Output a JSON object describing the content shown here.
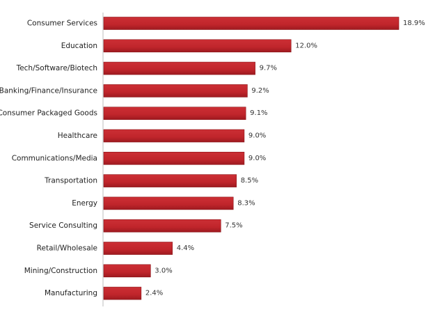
{
  "chart_data": {
    "type": "bar",
    "orientation": "horizontal",
    "categories": [
      "Consumer Services",
      "Education",
      "Tech/Software/Biotech",
      "Banking/Finance/Insurance",
      "Consumer Packaged Goods",
      "Healthcare",
      "Communications/Media",
      "Transportation",
      "Energy",
      "Service Consulting",
      "Retail/Wholesale",
      "Mining/Construction",
      "Manufacturing"
    ],
    "values": [
      18.9,
      12.0,
      9.7,
      9.2,
      9.1,
      9.0,
      9.0,
      8.5,
      8.3,
      7.5,
      4.4,
      3.0,
      2.4
    ],
    "value_labels": [
      "18.9%",
      "12.0%",
      "9.7%",
      "9.2%",
      "9.1%",
      "9.0%",
      "9.0%",
      "8.5%",
      "8.3%",
      "7.5%",
      "4.4%",
      "3.0%",
      "2.4%"
    ],
    "xlim": [
      0,
      19.3
    ],
    "grid": false,
    "legend": "none",
    "bar_color": "#c0252b",
    "bar_edge_color": "#8a1418"
  }
}
